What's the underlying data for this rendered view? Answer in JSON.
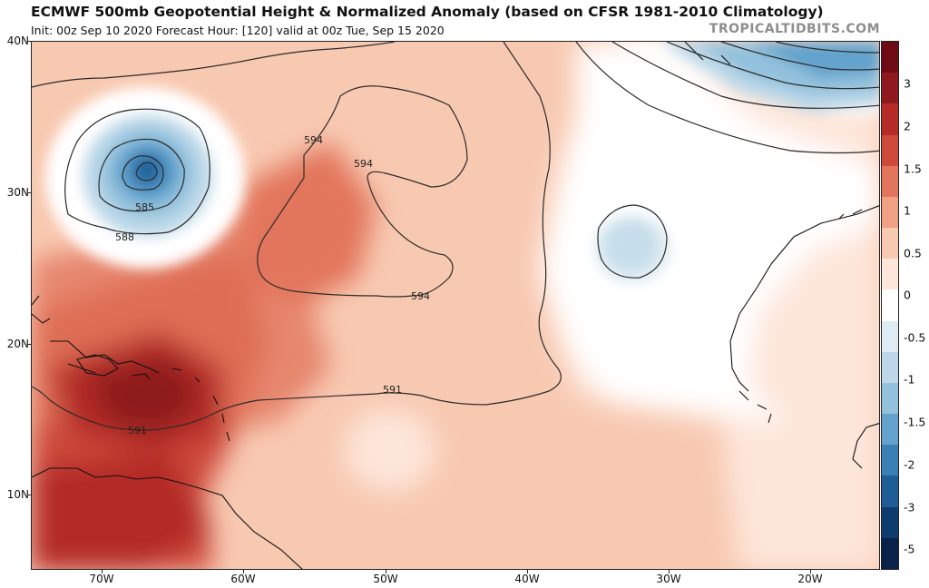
{
  "header": {
    "title": "ECMWF 500mb Geopotential Height & Normalized Anomaly (based on CFSR 1981-2010 Climatology)",
    "subtitle": "Init: 00z Sep 10 2020   Forecast Hour: [120]   valid at 00z Tue, Sep 15 2020",
    "brand": "TROPICALTIDBITS.COM"
  },
  "axes": {
    "lat_labels": [
      "40N",
      "30N",
      "20N",
      "10N"
    ],
    "lon_labels": [
      "70W",
      "60W",
      "50W",
      "40W",
      "30W",
      "20W"
    ]
  },
  "contours": {
    "labels": [
      "594",
      "594",
      "594",
      "585",
      "588",
      "591"
    ]
  },
  "colorbar": {
    "tick_labels": [
      "3",
      "2",
      "1.5",
      "1",
      "0.5",
      "0",
      "-0.5",
      "-1",
      "-1.5",
      "-2",
      "-3",
      "-5"
    ],
    "colors": [
      "#6e0b14",
      "#8e1a1e",
      "#b42b27",
      "#cd4a3b",
      "#e2765c",
      "#f0a184",
      "#f8c9b1",
      "#fde6da",
      "#ffffff",
      "#deebf2",
      "#bcd8e8",
      "#93c1dc",
      "#62a2cc",
      "#3a7fb5",
      "#1e5d96",
      "#0f3c6e",
      "#08224a"
    ]
  }
}
